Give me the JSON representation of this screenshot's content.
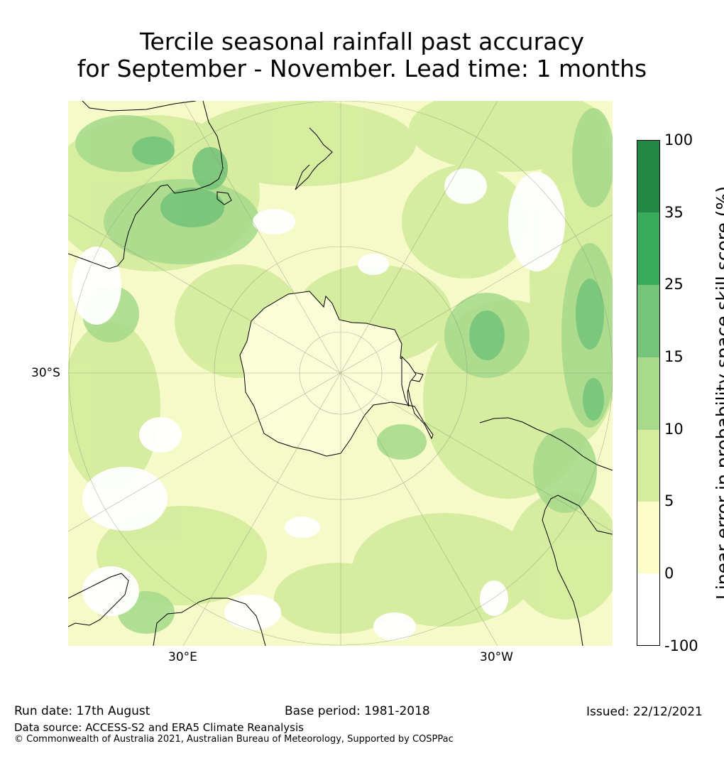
{
  "title": {
    "line1": "Tercile seasonal rainfall past accuracy",
    "line2": "for September - November. Lead time: 1 months"
  },
  "map": {
    "projection": "south-polar-stereographic",
    "lat_labels": [
      "30°S"
    ],
    "lon_labels": [
      "30°E",
      "30°W"
    ],
    "colors": {
      "ocean_base": "#f4f9c8",
      "land_ice": "#fbfdd8",
      "coast": "#000000",
      "grid": "#8c9b7a"
    }
  },
  "colorbar": {
    "title": "Linear error in probability space skill score (%)",
    "ticks": [
      "100",
      "35",
      "25",
      "15",
      "10",
      "5",
      "0",
      "-100"
    ],
    "bins": [
      {
        "range": "35 to 100",
        "color": "#228844"
      },
      {
        "range": "25 to 35",
        "color": "#3aaa5b"
      },
      {
        "range": "15 to 25",
        "color": "#76c47a"
      },
      {
        "range": "10 to 15",
        "color": "#a8da8c"
      },
      {
        "range": "5 to 10",
        "color": "#d5ec9e"
      },
      {
        "range": "0 to 5",
        "color": "#fdfdc8"
      },
      {
        "range": "-100 to 0",
        "color": "#ffffff"
      }
    ]
  },
  "footer": {
    "run_date": "Run date: 17th August",
    "base_period": "Base period: 1981-2018",
    "issued": "Issued: 22/12/2021",
    "data_source": "Data source: ACCESS-S2 and ERA5 Climate Reanalysis",
    "copyright": "© Commonwealth of Australia 2021, Australian Bureau of Meteorology, Supported by COSPPac"
  }
}
